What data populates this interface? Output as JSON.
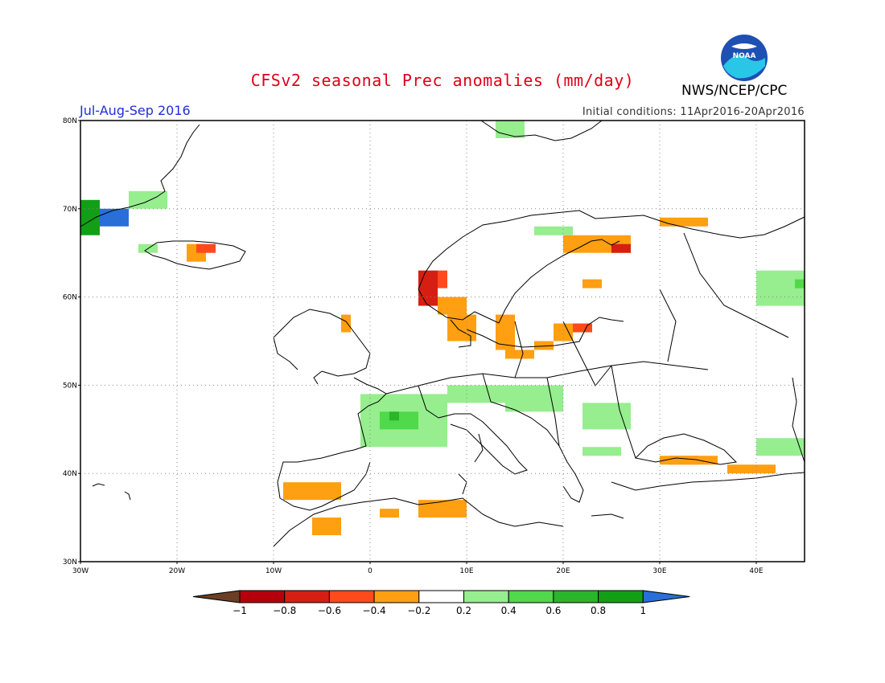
{
  "header": {
    "title": "CFSv2 seasonal Prec anomalies (mm/day)",
    "season": "Jul-Aug-Sep 2016",
    "initial_conditions": "Initial conditions: 11Apr2016-20Apr2016",
    "agency": "NWS/NCEP/CPC",
    "logo_text": "NOAA"
  },
  "map": {
    "region": "Europe",
    "lon_range": [
      -30,
      45
    ],
    "lat_range": [
      30,
      80
    ],
    "lat_ticks": [
      "30N",
      "40N",
      "50N",
      "60N",
      "70N",
      "80N"
    ],
    "lon_ticks": [
      "30W",
      "20W",
      "10W",
      "0",
      "10E",
      "20E",
      "30E",
      "40E"
    ],
    "grid": true
  },
  "legend": {
    "labels": [
      "-1",
      "-0.8",
      "-0.6",
      "-0.4",
      "-0.2",
      "0.2",
      "0.4",
      "0.6",
      "0.8",
      "1"
    ],
    "colors": {
      "lt_-1": "#6b3f26",
      "-1_-0.8": "#b5000b",
      "-0.8_-0.6": "#d71e12",
      "-0.6_-0.4": "#ff4a1c",
      "-0.4_-0.2": "#ff9f11",
      "-0.2_0.2": "#ffffff",
      "0.2_0.4": "#96ee8e",
      "0.4_0.6": "#4fd94b",
      "0.6_0.8": "#2ab52a",
      "0.8_1": "#129f16",
      "gt_1": "#2a6fd8"
    }
  },
  "anomaly_patches": [
    {
      "lon": [
        -30,
        -25
      ],
      "lat": [
        68,
        70
      ],
      "value": 1.1
    },
    {
      "lon": [
        -30,
        -28
      ],
      "lat": [
        67,
        71
      ],
      "value": 0.9
    },
    {
      "lon": [
        -25,
        -21
      ],
      "lat": [
        70,
        72
      ],
      "value": 0.3
    },
    {
      "lon": [
        -24,
        -22
      ],
      "lat": [
        65,
        66
      ],
      "value": 0.3
    },
    {
      "lon": [
        -19,
        -17
      ],
      "lat": [
        64,
        66
      ],
      "value": -0.3
    },
    {
      "lon": [
        -18,
        -16
      ],
      "lat": [
        65,
        66
      ],
      "value": -0.5
    },
    {
      "lon": [
        -3,
        -2
      ],
      "lat": [
        56,
        58
      ],
      "value": -0.3
    },
    {
      "lon": [
        5,
        7
      ],
      "lat": [
        59,
        63
      ],
      "value": -0.7
    },
    {
      "lon": [
        7,
        8
      ],
      "lat": [
        61,
        63
      ],
      "value": -0.5
    },
    {
      "lon": [
        7,
        10
      ],
      "lat": [
        58,
        60
      ],
      "value": -0.3
    },
    {
      "lon": [
        8,
        11
      ],
      "lat": [
        55,
        58
      ],
      "value": -0.3
    },
    {
      "lon": [
        13,
        15
      ],
      "lat": [
        54,
        58
      ],
      "value": -0.3
    },
    {
      "lon": [
        14,
        17
      ],
      "lat": [
        53,
        54
      ],
      "value": -0.3
    },
    {
      "lon": [
        17,
        19
      ],
      "lat": [
        54,
        55
      ],
      "value": -0.3
    },
    {
      "lon": [
        19,
        21
      ],
      "lat": [
        55,
        57
      ],
      "value": -0.3
    },
    {
      "lon": [
        21,
        23
      ],
      "lat": [
        56,
        57
      ],
      "value": -0.5
    },
    {
      "lon": [
        20,
        27
      ],
      "lat": [
        65,
        67
      ],
      "value": -0.3
    },
    {
      "lon": [
        25,
        27
      ],
      "lat": [
        65,
        66
      ],
      "value": -0.7
    },
    {
      "lon": [
        22,
        24
      ],
      "lat": [
        61,
        62
      ],
      "value": -0.3
    },
    {
      "lon": [
        30,
        35
      ],
      "lat": [
        68,
        69
      ],
      "value": -0.3
    },
    {
      "lon": [
        31,
        34
      ],
      "lat": [
        41,
        42
      ],
      "value": -0.5
    },
    {
      "lon": [
        30,
        36
      ],
      "lat": [
        41,
        42
      ],
      "value": -0.3
    },
    {
      "lon": [
        37,
        42
      ],
      "lat": [
        40,
        41
      ],
      "value": -0.3
    },
    {
      "lon": [
        -9,
        -3
      ],
      "lat": [
        37,
        39
      ],
      "value": -0.3
    },
    {
      "lon": [
        -6,
        -3
      ],
      "lat": [
        33,
        35
      ],
      "value": -0.3
    },
    {
      "lon": [
        1,
        3
      ],
      "lat": [
        35,
        36
      ],
      "value": -0.3
    },
    {
      "lon": [
        5,
        10
      ],
      "lat": [
        35,
        37
      ],
      "value": -0.3
    },
    {
      "lon": [
        -1,
        8
      ],
      "lat": [
        43,
        49
      ],
      "value": 0.3
    },
    {
      "lon": [
        1,
        5
      ],
      "lat": [
        45,
        47
      ],
      "value": 0.5
    },
    {
      "lon": [
        2,
        3
      ],
      "lat": [
        46,
        47
      ],
      "value": 0.7
    },
    {
      "lon": [
        8,
        14
      ],
      "lat": [
        48,
        50
      ],
      "value": 0.3
    },
    {
      "lon": [
        14,
        20
      ],
      "lat": [
        47,
        50
      ],
      "value": 0.3
    },
    {
      "lon": [
        22,
        27
      ],
      "lat": [
        45,
        48
      ],
      "value": 0.3
    },
    {
      "lon": [
        22,
        26
      ],
      "lat": [
        42,
        43
      ],
      "value": 0.3
    },
    {
      "lon": [
        40,
        45
      ],
      "lat": [
        59,
        63
      ],
      "value": 0.3
    },
    {
      "lon": [
        44,
        45
      ],
      "lat": [
        61,
        62
      ],
      "value": 0.5
    },
    {
      "lon": [
        40,
        45
      ],
      "lat": [
        42,
        44
      ],
      "value": 0.3
    },
    {
      "lon": [
        17,
        21
      ],
      "lat": [
        67,
        68
      ],
      "value": 0.3
    },
    {
      "lon": [
        13,
        16
      ],
      "lat": [
        78,
        80
      ],
      "value": 0.3
    }
  ]
}
